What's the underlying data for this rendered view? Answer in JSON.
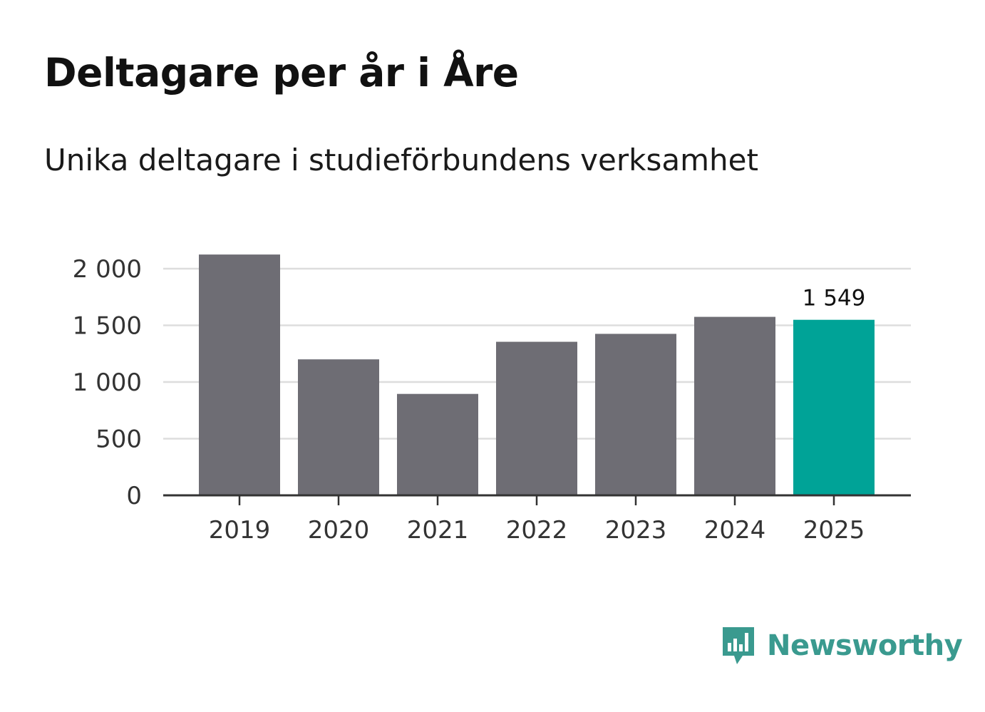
{
  "header": {
    "title": "Deltagare per år i Åre",
    "subtitle": "Unika deltagare i studieförbundens verksamhet"
  },
  "brand": {
    "name": "Newsworthy",
    "color": "#3a9a8f",
    "icon": "bar-chart-speech-bubble-icon"
  },
  "colors": {
    "bar": "#6e6d74",
    "highlight": "#00a397",
    "grid": "#dddddd",
    "axis": "#333333"
  },
  "chart_data": {
    "type": "bar",
    "title": "Deltagare per år i Åre",
    "subtitle": "Unika deltagare i studieförbundens verksamhet",
    "categories": [
      "2019",
      "2020",
      "2021",
      "2022",
      "2023",
      "2024",
      "2025"
    ],
    "values": [
      2125,
      1200,
      895,
      1355,
      1425,
      1575,
      1549
    ],
    "highlight_index": 6,
    "data_labels": [
      {
        "index": 6,
        "text": "1 549"
      }
    ],
    "ylim": [
      0,
      2000
    ],
    "yticks": [
      0,
      500,
      1000,
      1500,
      2000
    ],
    "ytick_labels": [
      "0",
      "500",
      "1 000",
      "1 500",
      "2 000"
    ],
    "xlabel": "",
    "ylabel": "",
    "grid": true
  }
}
